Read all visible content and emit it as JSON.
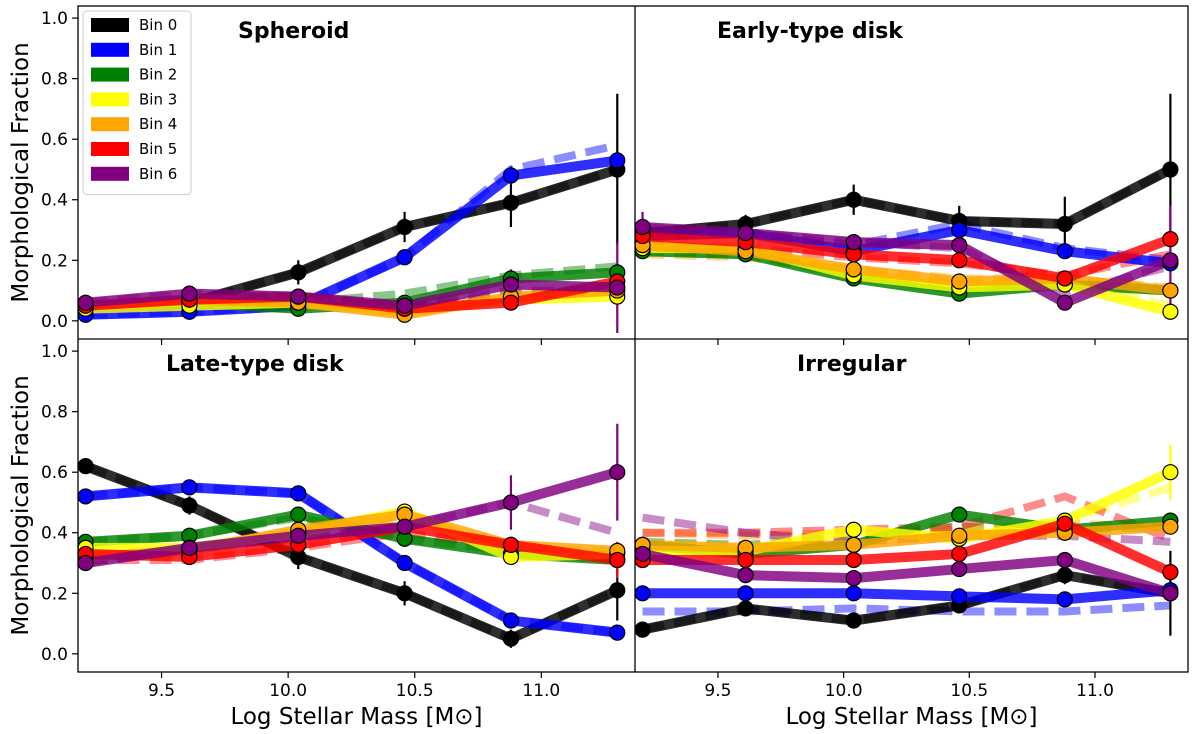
{
  "chart_data": {
    "type": "line",
    "figure": "2x2 grid of line plots",
    "xlabel": "Log Stellar Mass [M⊙]",
    "ylabel": "Morphological Fraction",
    "xlim": [
      9.17,
      11.37
    ],
    "ylim": [
      -0.06,
      1.04
    ],
    "xticks": [
      9.5,
      10.0,
      10.5,
      11.0
    ],
    "xtick_labels": [
      "9.5",
      "10.0",
      "10.5",
      "11.0"
    ],
    "yticks": [
      0.0,
      0.2,
      0.4,
      0.6,
      0.8,
      1.0
    ],
    "ytick_labels": [
      "0.0",
      "0.2",
      "0.4",
      "0.6",
      "0.8",
      "1.0"
    ],
    "x": [
      9.2,
      9.61,
      10.04,
      10.46,
      10.88,
      11.3
    ],
    "legend": {
      "placement": "top-left of first panel",
      "entries": [
        "Bin 0",
        "Bin 1",
        "Bin 2",
        "Bin 3",
        "Bin 4",
        "Bin 5",
        "Bin 6"
      ]
    },
    "series_colors": [
      "#000000",
      "#0000ff",
      "#008000",
      "#ffff00",
      "#ffa500",
      "#ff0000",
      "#800080"
    ],
    "panels": [
      {
        "title": "Spheroid",
        "series": [
          {
            "name": "Bin 0",
            "values": [
              0.05,
              0.06,
              0.16,
              0.31,
              0.39,
              0.5
            ],
            "dashed": [
              0.05,
              0.06,
              0.16,
              0.31,
              0.39,
              0.5
            ],
            "err": [
              null,
              null,
              0.04,
              0.05,
              0.08,
              0.25
            ]
          },
          {
            "name": "Bin 1",
            "values": [
              0.02,
              0.03,
              0.05,
              0.21,
              0.48,
              0.53
            ],
            "dashed": [
              0.02,
              0.03,
              0.05,
              0.21,
              0.5,
              0.58
            ],
            "err": [
              null,
              null,
              null,
              null,
              0.03,
              null
            ]
          },
          {
            "name": "Bin 2",
            "values": [
              0.05,
              0.06,
              0.04,
              0.06,
              0.14,
              0.16
            ],
            "dashed": [
              0.05,
              0.06,
              0.06,
              0.09,
              0.15,
              0.18
            ],
            "err": [
              null,
              null,
              null,
              null,
              null,
              null
            ]
          },
          {
            "name": "Bin 3",
            "values": [
              0.04,
              0.05,
              0.06,
              0.03,
              0.07,
              0.08
            ],
            "dashed": [
              0.04,
              0.05,
              0.06,
              0.05,
              0.08,
              0.09
            ],
            "err": [
              null,
              null,
              null,
              null,
              null,
              null
            ]
          },
          {
            "name": "Bin 4",
            "values": [
              0.05,
              0.07,
              0.06,
              0.02,
              0.08,
              0.1
            ],
            "dashed": [
              0.05,
              0.07,
              0.06,
              0.04,
              0.09,
              0.11
            ],
            "err": [
              null,
              null,
              null,
              null,
              null,
              null
            ]
          },
          {
            "name": "Bin 5",
            "values": [
              0.05,
              0.07,
              0.08,
              0.04,
              0.06,
              0.13
            ],
            "dashed": [
              0.05,
              0.07,
              0.08,
              0.05,
              0.07,
              0.12
            ],
            "err": [
              null,
              null,
              null,
              null,
              null,
              null
            ]
          },
          {
            "name": "Bin 6",
            "values": [
              0.06,
              0.09,
              0.08,
              0.05,
              0.12,
              0.11
            ],
            "dashed": [
              0.06,
              0.09,
              0.08,
              0.05,
              0.1,
              0.1
            ],
            "err": [
              null,
              null,
              null,
              null,
              0.05,
              0.15
            ]
          }
        ]
      },
      {
        "title": "Early-type disk",
        "series": [
          {
            "name": "Bin 0",
            "values": [
              0.29,
              0.32,
              0.4,
              0.33,
              0.32,
              0.5
            ],
            "dashed": [
              0.29,
              0.32,
              0.4,
              0.33,
              0.32,
              0.5
            ],
            "err": [
              null,
              0.03,
              0.05,
              0.05,
              0.09,
              0.25
            ]
          },
          {
            "name": "Bin 1",
            "values": [
              0.28,
              0.29,
              0.23,
              0.3,
              0.23,
              0.19
            ],
            "dashed": [
              0.28,
              0.29,
              0.25,
              0.32,
              0.24,
              0.2
            ],
            "err": [
              null,
              null,
              null,
              null,
              null,
              null
            ]
          },
          {
            "name": "Bin 2",
            "values": [
              0.23,
              0.22,
              0.14,
              0.09,
              0.12,
              0.1
            ],
            "dashed": [
              0.23,
              0.22,
              0.15,
              0.1,
              0.13,
              0.1
            ],
            "err": [
              null,
              null,
              null,
              null,
              null,
              null
            ]
          },
          {
            "name": "Bin 3",
            "values": [
              0.24,
              0.24,
              0.15,
              0.11,
              0.12,
              0.03
            ],
            "dashed": [
              0.24,
              0.24,
              0.16,
              0.12,
              0.13,
              0.05
            ],
            "err": [
              null,
              null,
              null,
              null,
              null,
              null
            ]
          },
          {
            "name": "Bin 4",
            "values": [
              0.25,
              0.23,
              0.17,
              0.13,
              0.14,
              0.1
            ],
            "dashed": [
              0.22,
              0.21,
              0.17,
              0.14,
              0.14,
              0.11
            ],
            "err": [
              null,
              null,
              null,
              null,
              null,
              null
            ]
          },
          {
            "name": "Bin 5",
            "values": [
              0.28,
              0.26,
              0.22,
              0.2,
              0.14,
              0.27
            ],
            "dashed": [
              0.25,
              0.24,
              0.21,
              0.19,
              0.15,
              0.22
            ],
            "err": [
              null,
              null,
              null,
              null,
              null,
              null
            ]
          },
          {
            "name": "Bin 6",
            "values": [
              0.31,
              0.29,
              0.26,
              0.25,
              0.06,
              0.2
            ],
            "dashed": [
              0.31,
              0.29,
              0.26,
              0.24,
              0.09,
              0.18
            ],
            "err": [
              0.05,
              null,
              null,
              null,
              null,
              0.18
            ]
          }
        ]
      },
      {
        "title": "Late-type disk",
        "series": [
          {
            "name": "Bin 0",
            "values": [
              0.62,
              0.49,
              0.32,
              0.2,
              0.05,
              0.21
            ],
            "dashed": [
              0.62,
              0.49,
              0.32,
              0.2,
              0.05,
              0.21
            ],
            "err": [
              0.02,
              0.03,
              0.04,
              0.04,
              0.03,
              0.1
            ]
          },
          {
            "name": "Bin 1",
            "values": [
              0.52,
              0.55,
              0.53,
              0.3,
              0.11,
              0.07
            ],
            "dashed": [
              0.52,
              0.55,
              0.53,
              0.3,
              0.11,
              0.07
            ],
            "err": [
              null,
              null,
              null,
              null,
              null,
              null
            ]
          },
          {
            "name": "Bin 2",
            "values": [
              0.37,
              0.39,
              0.46,
              0.38,
              0.33,
              0.31
            ],
            "dashed": [
              0.37,
              0.39,
              0.45,
              0.38,
              0.34,
              0.31
            ],
            "err": [
              null,
              null,
              null,
              null,
              null,
              null
            ]
          },
          {
            "name": "Bin 3",
            "values": [
              0.35,
              0.35,
              0.4,
              0.47,
              0.32,
              0.33
            ],
            "dashed": [
              0.34,
              0.34,
              0.39,
              0.45,
              0.33,
              0.33
            ],
            "err": [
              null,
              null,
              null,
              null,
              null,
              null
            ]
          },
          {
            "name": "Bin 4",
            "values": [
              0.32,
              0.34,
              0.41,
              0.46,
              0.36,
              0.34
            ],
            "dashed": [
              0.32,
              0.33,
              0.39,
              0.44,
              0.35,
              0.34
            ],
            "err": [
              null,
              null,
              null,
              null,
              null,
              null
            ]
          },
          {
            "name": "Bin 5",
            "values": [
              0.33,
              0.32,
              0.36,
              0.42,
              0.36,
              0.31
            ],
            "dashed": [
              0.31,
              0.31,
              0.35,
              0.4,
              0.35,
              0.31
            ],
            "err": [
              null,
              null,
              null,
              null,
              null,
              0.06
            ]
          },
          {
            "name": "Bin 6",
            "values": [
              0.3,
              0.35,
              0.39,
              0.42,
              0.5,
              0.6
            ],
            "dashed": [
              0.3,
              0.35,
              0.38,
              0.42,
              0.5,
              0.4
            ],
            "err": [
              null,
              null,
              null,
              null,
              0.09,
              0.16
            ]
          }
        ]
      },
      {
        "title": "Irregular",
        "series": [
          {
            "name": "Bin 0",
            "values": [
              0.08,
              0.15,
              0.11,
              0.16,
              0.26,
              0.2
            ],
            "dashed": [
              0.08,
              0.15,
              0.11,
              0.16,
              0.26,
              0.2
            ],
            "err": [
              null,
              null,
              null,
              0.02,
              0.03,
              0.14
            ]
          },
          {
            "name": "Bin 1",
            "values": [
              0.2,
              0.2,
              0.2,
              0.19,
              0.18,
              0.21
            ],
            "dashed": [
              0.14,
              0.14,
              0.15,
              0.14,
              0.14,
              0.16
            ],
            "err": [
              null,
              null,
              null,
              null,
              null,
              null
            ]
          },
          {
            "name": "Bin 2",
            "values": [
              0.36,
              0.33,
              0.36,
              0.46,
              0.41,
              0.44
            ],
            "dashed": [
              0.37,
              0.36,
              0.38,
              0.42,
              0.41,
              0.42
            ],
            "err": [
              null,
              null,
              null,
              null,
              null,
              null
            ]
          },
          {
            "name": "Bin 3",
            "values": [
              0.34,
              0.34,
              0.41,
              0.38,
              0.44,
              0.6
            ],
            "dashed": [
              0.36,
              0.35,
              0.39,
              0.4,
              0.44,
              0.55
            ],
            "err": [
              null,
              null,
              null,
              null,
              null,
              0.09
            ]
          },
          {
            "name": "Bin 4",
            "values": [
              0.36,
              0.35,
              0.36,
              0.39,
              0.4,
              0.42
            ],
            "dashed": [
              0.4,
              0.39,
              0.4,
              0.41,
              0.43,
              0.42
            ],
            "err": [
              null,
              null,
              null,
              null,
              null,
              null
            ]
          },
          {
            "name": "Bin 5",
            "values": [
              0.31,
              0.31,
              0.31,
              0.33,
              0.43,
              0.27
            ],
            "dashed": [
              0.4,
              0.4,
              0.41,
              0.42,
              0.52,
              0.38
            ],
            "err": [
              null,
              null,
              null,
              null,
              null,
              null
            ]
          },
          {
            "name": "Bin 6",
            "values": [
              0.33,
              0.26,
              0.25,
              0.28,
              0.31,
              0.2
            ],
            "dashed": [
              0.45,
              0.4,
              0.37,
              0.39,
              0.39,
              0.37
            ],
            "err": [
              null,
              null,
              null,
              null,
              null,
              null
            ]
          }
        ]
      }
    ]
  }
}
